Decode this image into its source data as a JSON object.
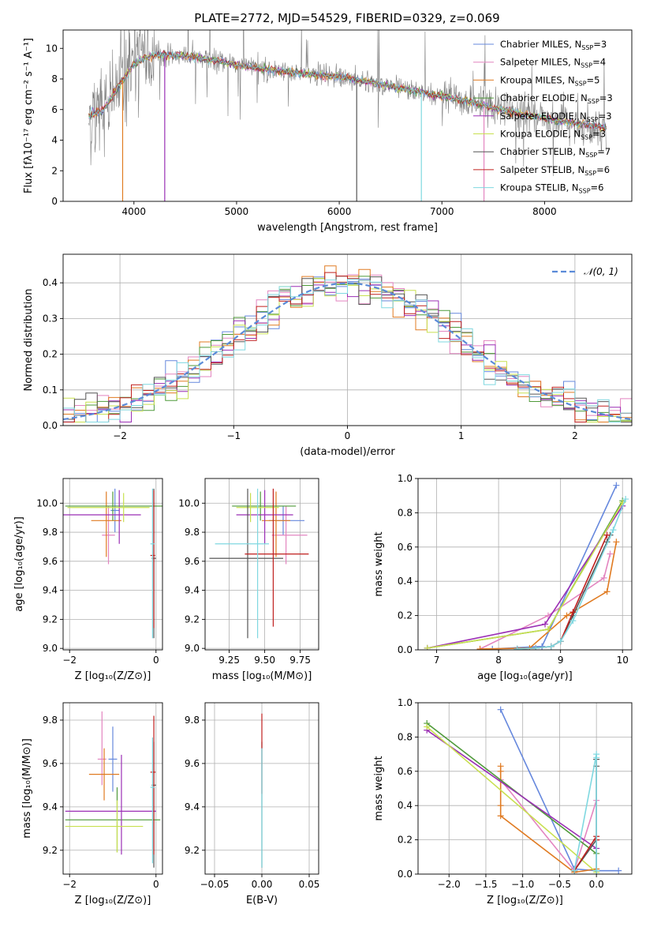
{
  "figure": {
    "title": "PLATE=2772, MJD=54529, FIBERID=0329, z=0.069"
  },
  "models": [
    {
      "key": "chabrier_miles",
      "color": "#6688dd",
      "legend": "Chabrier MILES, N",
      "nssp": "3"
    },
    {
      "key": "salpeter_miles",
      "color": "#e385c0",
      "legend": "Salpeter MILES, N",
      "nssp": "4"
    },
    {
      "key": "kroupa_miles",
      "color": "#e07b22",
      "legend": "Kroupa MILES, N",
      "nssp": "5"
    },
    {
      "key": "chabrier_elodie",
      "color": "#4f9a3a",
      "legend": "Chabrier ELODIE, N",
      "nssp": "3"
    },
    {
      "key": "salpeter_elodie",
      "color": "#9b2fb5",
      "legend": "Salpeter ELODIE, N",
      "nssp": "3"
    },
    {
      "key": "kroupa_elodie",
      "color": "#c8e050",
      "legend": "Kroupa ELODIE, N",
      "nssp": "3"
    },
    {
      "key": "chabrier_stelib",
      "color": "#555555",
      "legend": "Chabrier STELIB, N",
      "nssp": "7"
    },
    {
      "key": "salpeter_stelib",
      "color": "#c0201f",
      "legend": "Salpeter STELIB, N",
      "nssp": "6"
    },
    {
      "key": "kroupa_stelib",
      "color": "#7fd8e0",
      "legend": "Kroupa STELIB, N",
      "nssp": "6"
    }
  ],
  "chart_data": [
    {
      "id": "spectrum",
      "type": "line",
      "title": "PLATE=2772, MJD=54529, FIBERID=0329, z=0.069",
      "xlabel": "wavelength [Angstrom, rest frame]",
      "ylabel": "Flux [fλ10⁻¹⁷ erg cm⁻² s⁻¹ A⁻¹]",
      "xlim": [
        3310,
        8850
      ],
      "ylim": [
        0,
        11.2
      ],
      "xticks": [
        4000,
        5000,
        6000,
        7000,
        8000
      ],
      "yticks": [
        0,
        2,
        4,
        6,
        8,
        10
      ],
      "data_color": "#808080",
      "continuum": {
        "x": [
          3560,
          3700,
          3900,
          4000,
          4200,
          4500,
          4800,
          5000,
          5300,
          5600,
          6000,
          6300,
          6600,
          6900,
          7200,
          7500,
          7800,
          8100,
          8400,
          8600
        ],
        "y": [
          5.6,
          6.0,
          8.0,
          9.0,
          9.6,
          9.5,
          9.2,
          8.9,
          8.6,
          8.4,
          8.1,
          7.8,
          7.4,
          7.0,
          6.6,
          6.1,
          5.7,
          5.3,
          5.0,
          4.8
        ]
      },
      "model_dips": [
        {
          "x": 3890,
          "to": 0
        },
        {
          "x": 4300,
          "to": 0
        },
        {
          "x": 6170,
          "to": 0
        },
        {
          "x": 6800,
          "to": 0
        },
        {
          "x": 7410,
          "to": 0
        }
      ],
      "legend_position": "upper right"
    },
    {
      "id": "residuals",
      "type": "histogram",
      "xlabel": "(data-model)/error",
      "ylabel": "Normed distribution",
      "xlim": [
        -2.5,
        2.5
      ],
      "ylim": [
        0,
        0.48
      ],
      "xticks": [
        -2,
        -1,
        0,
        1,
        2
      ],
      "yticks": [
        0,
        0.1,
        0.2,
        0.3,
        0.4
      ],
      "bin_width": 0.1,
      "bin_start": -2.5,
      "reference_curve": {
        "label": "𝒩(0, 1)",
        "color": "#5b8bd8",
        "style": "dashed"
      },
      "legend_position": "upper right"
    },
    {
      "id": "age_vs_Z",
      "type": "errorbar",
      "xlabel": "Z [log₁₀(Z/Z⊙)]",
      "ylabel": "age  [log₁₀(age/yr)]",
      "xlim": [
        -2.15,
        0.15
      ],
      "ylim": [
        8.99,
        10.17
      ],
      "xticks": [
        -2,
        0
      ],
      "yticks": [
        9.0,
        9.2,
        9.4,
        9.6,
        9.8,
        10.0
      ],
      "points": [
        {
          "model": "chabrier_miles",
          "x": -0.95,
          "y": 9.95,
          "xerr": [
            0.1,
            0.1
          ],
          "yerr": [
            0.15,
            0.15
          ]
        },
        {
          "model": "salpeter_miles",
          "x": -1.1,
          "y": 9.78,
          "xerr": [
            0.15,
            0.15
          ],
          "yerr": [
            0.2,
            0.2
          ]
        },
        {
          "model": "kroupa_miles",
          "x": -1.15,
          "y": 9.88,
          "xerr": [
            0.35,
            0.35
          ],
          "yerr": [
            0.25,
            0.2
          ]
        },
        {
          "model": "chabrier_elodie",
          "x": -1.0,
          "y": 9.98,
          "xerr": [
            1.1,
            1.2
          ],
          "yerr": [
            0.1,
            0.1
          ]
        },
        {
          "model": "salpeter_elodie",
          "x": -0.85,
          "y": 9.92,
          "xerr": [
            1.3,
            0.5
          ],
          "yerr": [
            0.2,
            0.17
          ]
        },
        {
          "model": "kroupa_elodie",
          "x": -0.75,
          "y": 9.97,
          "xerr": [
            1.3,
            0.6
          ],
          "yerr": [
            0.1,
            0.1
          ]
        },
        {
          "model": "chabrier_stelib",
          "x": -0.05,
          "y": 9.62,
          "xerr": [
            0.05,
            0.05
          ],
          "yerr": [
            0.55,
            0.48
          ]
        },
        {
          "model": "salpeter_stelib",
          "x": -0.05,
          "y": 9.64,
          "xerr": [
            0.08,
            0.03
          ],
          "yerr": [
            0.5,
            0.45
          ]
        },
        {
          "model": "kroupa_stelib",
          "x": -0.08,
          "y": 9.72,
          "xerr": [
            0.05,
            0.05
          ],
          "yerr": [
            0.65,
            0.38
          ]
        }
      ]
    },
    {
      "id": "age_vs_mass",
      "type": "errorbar",
      "xlabel": "mass [log₁₀(M/M⊙)]",
      "ylabel": "",
      "xlim": [
        9.08,
        9.88
      ],
      "ylim": [
        8.99,
        10.17
      ],
      "xticks": [
        9.25,
        9.5,
        9.75
      ],
      "yticks": [
        9.0,
        9.2,
        9.4,
        9.6,
        9.8,
        10.0
      ],
      "points": [
        {
          "model": "chabrier_miles",
          "x": 9.63,
          "y": 9.88,
          "xerr": [
            0.1,
            0.15
          ],
          "yerr": [
            0.1,
            0.1
          ]
        },
        {
          "model": "salpeter_miles",
          "x": 9.65,
          "y": 9.78,
          "xerr": [
            0.1,
            0.15
          ],
          "yerr": [
            0.2,
            0.2
          ]
        },
        {
          "model": "kroupa_miles",
          "x": 9.58,
          "y": 9.88,
          "xerr": [
            0.1,
            0.1
          ],
          "yerr": [
            0.25,
            0.2
          ]
        },
        {
          "model": "chabrier_elodie",
          "x": 9.47,
          "y": 9.98,
          "xerr": [
            0.2,
            0.25
          ],
          "yerr": [
            0.1,
            0.1
          ]
        },
        {
          "model": "salpeter_elodie",
          "x": 9.5,
          "y": 9.92,
          "xerr": [
            0.2,
            0.2
          ],
          "yerr": [
            0.2,
            0.17
          ]
        },
        {
          "model": "kroupa_elodie",
          "x": 9.4,
          "y": 9.97,
          "xerr": [
            0.1,
            0.2
          ],
          "yerr": [
            0.1,
            0.1
          ]
        },
        {
          "model": "chabrier_stelib",
          "x": 9.38,
          "y": 9.62,
          "xerr": [
            0.27,
            0.25
          ],
          "yerr": [
            0.55,
            0.48
          ]
        },
        {
          "model": "salpeter_stelib",
          "x": 9.56,
          "y": 9.65,
          "xerr": [
            0.2,
            0.25
          ],
          "yerr": [
            0.5,
            0.45
          ]
        },
        {
          "model": "kroupa_stelib",
          "x": 9.45,
          "y": 9.72,
          "xerr": [
            0.3,
            0.08
          ],
          "yerr": [
            0.65,
            0.38
          ]
        }
      ]
    },
    {
      "id": "weight_vs_age",
      "type": "line",
      "xlabel": "age  [log₁₀(age/yr)]",
      "ylabel": "mass weight",
      "xlim": [
        6.7,
        10.15
      ],
      "ylim": [
        0,
        1.0
      ],
      "xticks": [
        7,
        8,
        9,
        10
      ],
      "yticks": [
        0,
        0.2,
        0.4,
        0.6,
        0.8,
        1.0
      ],
      "series": [
        {
          "model": "chabrier_miles",
          "x": [
            7.9,
            8.7,
            9.9
          ],
          "y": [
            0.005,
            0.02,
            0.96
          ]
        },
        {
          "model": "salpeter_miles",
          "x": [
            7.7,
            8.8,
            9.7,
            9.8
          ],
          "y": [
            0.005,
            0.2,
            0.42,
            0.56
          ]
        },
        {
          "model": "kroupa_miles",
          "x": [
            7.7,
            8.5,
            9.1,
            9.75,
            9.9
          ],
          "y": [
            0.005,
            0.01,
            0.2,
            0.34,
            0.63
          ]
        },
        {
          "model": "chabrier_elodie",
          "x": [
            6.85,
            8.8,
            10.0
          ],
          "y": [
            0.01,
            0.12,
            0.87
          ]
        },
        {
          "model": "salpeter_elodie",
          "x": [
            6.85,
            8.75,
            10.0
          ],
          "y": [
            0.01,
            0.15,
            0.84
          ]
        },
        {
          "model": "kroupa_elodie",
          "x": [
            6.85,
            8.8,
            10.0
          ],
          "y": [
            0.01,
            0.12,
            0.86
          ]
        },
        {
          "model": "chabrier_stelib",
          "x": [
            8.3,
            8.6,
            8.85,
            9.0,
            9.2,
            9.75,
            9.8
          ],
          "y": [
            0.005,
            0.01,
            0.02,
            0.05,
            0.2,
            0.63,
            0.67
          ]
        },
        {
          "model": "salpeter_stelib",
          "x": [
            8.3,
            8.6,
            8.85,
            9.0,
            9.2,
            9.75
          ],
          "y": [
            0.005,
            0.01,
            0.02,
            0.05,
            0.22,
            0.67
          ]
        },
        {
          "model": "kroupa_stelib",
          "x": [
            8.3,
            8.6,
            8.85,
            9.0,
            9.2,
            9.85,
            10.05
          ],
          "y": [
            0.005,
            0.01,
            0.02,
            0.05,
            0.17,
            0.7,
            0.88
          ]
        }
      ]
    },
    {
      "id": "mass_vs_Z",
      "type": "errorbar",
      "xlabel": "Z [log₁₀(Z/Z⊙)]",
      "ylabel": "mass [log₁₀(M/M⊙)]",
      "xlim": [
        -2.15,
        0.15
      ],
      "ylim": [
        9.09,
        9.88
      ],
      "xticks": [
        -2,
        0
      ],
      "yticks": [
        9.2,
        9.4,
        9.6,
        9.8
      ],
      "points": [
        {
          "model": "chabrier_miles",
          "x": -1.0,
          "y": 9.62,
          "xerr": [
            0.1,
            0.1
          ],
          "yerr": [
            0.15,
            0.15
          ]
        },
        {
          "model": "salpeter_miles",
          "x": -1.25,
          "y": 9.62,
          "xerr": [
            0.1,
            0.1
          ],
          "yerr": [
            0.12,
            0.22
          ]
        },
        {
          "model": "kroupa_miles",
          "x": -1.2,
          "y": 9.55,
          "xerr": [
            0.35,
            0.35
          ],
          "yerr": [
            0.12,
            0.12
          ]
        },
        {
          "model": "chabrier_elodie",
          "x": -0.9,
          "y": 9.34,
          "xerr": [
            1.2,
            1.0
          ],
          "yerr": [
            0.15,
            0.15
          ]
        },
        {
          "model": "salpeter_elodie",
          "x": -0.8,
          "y": 9.38,
          "xerr": [
            1.3,
            0.8
          ],
          "yerr": [
            0.2,
            0.26
          ]
        },
        {
          "model": "kroupa_elodie",
          "x": -0.9,
          "y": 9.31,
          "xerr": [
            1.2,
            0.6
          ],
          "yerr": [
            0.12,
            0.12
          ]
        },
        {
          "model": "chabrier_stelib",
          "x": -0.05,
          "y": 9.5,
          "xerr": [
            0.05,
            0.05
          ],
          "yerr": [
            0.38,
            0.2
          ]
        },
        {
          "model": "salpeter_stelib",
          "x": -0.05,
          "y": 9.56,
          "xerr": [
            0.08,
            0.04
          ],
          "yerr": [
            0.38,
            0.26
          ]
        },
        {
          "model": "kroupa_stelib",
          "x": -0.08,
          "y": 9.49,
          "xerr": [
            0.05,
            0.05
          ],
          "yerr": [
            0.35,
            0.23
          ]
        }
      ]
    },
    {
      "id": "mass_vs_ebv",
      "type": "errorbar",
      "xlabel": "E(B-V)",
      "ylabel": "",
      "xlim": [
        -0.06,
        0.06
      ],
      "ylim": [
        9.09,
        9.88
      ],
      "xticks": [
        -0.05,
        0.0,
        0.05
      ],
      "yticks": [
        9.2,
        9.4,
        9.6,
        9.8
      ],
      "points": [
        {
          "model": "chabrier_stelib",
          "x": 0.0,
          "y": 9.5,
          "xerr": [
            0,
            0
          ],
          "yerr": [
            0.38,
            0.2
          ]
        },
        {
          "model": "salpeter_stelib",
          "x": 0.0,
          "y": 9.56,
          "xerr": [
            0,
            0
          ],
          "yerr": [
            0.1,
            0.27
          ]
        },
        {
          "model": "kroupa_stelib",
          "x": 0.0,
          "y": 9.49,
          "xerr": [
            0,
            0
          ],
          "yerr": [
            0.37,
            0.18
          ]
        }
      ]
    },
    {
      "id": "weight_vs_Z",
      "type": "line",
      "xlabel": "Z [log₁₀(Z/Z⊙)]",
      "ylabel": "mass weight",
      "xlim": [
        -2.42,
        0.48
      ],
      "ylim": [
        0,
        1.0
      ],
      "xticks": [
        -2.0,
        -1.5,
        -1.0,
        -0.5,
        0.0
      ],
      "yticks": [
        0,
        0.2,
        0.4,
        0.6,
        0.8,
        1.0
      ],
      "series": [
        {
          "model": "chabrier_miles",
          "x": [
            -1.3,
            -0.3,
            0.0,
            0.3
          ],
          "y": [
            0.96,
            0.03,
            0.02,
            0.02
          ]
        },
        {
          "model": "salpeter_miles",
          "x": [
            -1.3,
            -0.3,
            0.0
          ],
          "y": [
            0.55,
            0.02,
            0.43
          ]
        },
        {
          "model": "kroupa_miles",
          "x": [
            -1.3,
            -1.3,
            -1.3,
            -1.3,
            -0.3,
            0.0
          ],
          "y": [
            0.63,
            0.6,
            0.4,
            0.34,
            0.01,
            0.03
          ]
        },
        {
          "model": "chabrier_elodie",
          "x": [
            -2.3,
            0.0
          ],
          "y": [
            0.88,
            0.12
          ]
        },
        {
          "model": "salpeter_elodie",
          "x": [
            -2.3,
            0.0
          ],
          "y": [
            0.84,
            0.15
          ]
        },
        {
          "model": "kroupa_elodie",
          "x": [
            -2.3,
            0.0
          ],
          "y": [
            0.86,
            0.01
          ]
        },
        {
          "model": "chabrier_stelib",
          "x": [
            -0.3,
            0.0,
            0.0,
            0.0,
            0.0
          ],
          "y": [
            0.02,
            0.2,
            0.63,
            0.67,
            0.02
          ]
        },
        {
          "model": "salpeter_stelib",
          "x": [
            -0.3,
            0.0,
            0.0
          ],
          "y": [
            0.02,
            0.22,
            0.2
          ]
        },
        {
          "model": "kroupa_stelib",
          "x": [
            -0.3,
            0.0,
            0.0,
            0.0
          ],
          "y": [
            0.02,
            0.7,
            0.68,
            0.02
          ]
        }
      ]
    }
  ]
}
